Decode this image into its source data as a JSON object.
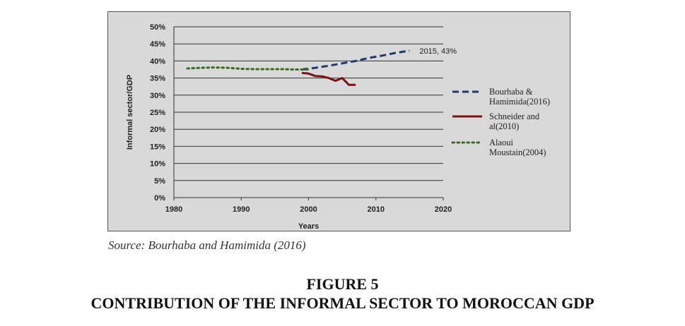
{
  "chart_data": {
    "type": "line",
    "xlabel": "Years",
    "ylabel": "Informal sector/GDP",
    "xlim": [
      1980,
      2020
    ],
    "ylim": [
      0,
      50
    ],
    "x_ticks": [
      "1980",
      "1990",
      "2000",
      "2010",
      "2020"
    ],
    "y_ticks": [
      "0%",
      "5%",
      "10%",
      "15%",
      "20%",
      "25%",
      "30%",
      "35%",
      "40%",
      "45%",
      "50%"
    ],
    "grid": "horizontal",
    "legend_position": "right",
    "series": [
      {
        "name": "Bourhaba & Hamimida(2016)",
        "name_lines": [
          "Bourhaba &",
          "Hamimida(2016)"
        ],
        "style": "dashed",
        "color": "#1f3b6e",
        "x": [
          1999,
          2001,
          2003,
          2005,
          2007,
          2009,
          2011,
          2013,
          2015
        ],
        "y": [
          37.5,
          38.0,
          38.6,
          39.3,
          40.0,
          40.9,
          41.6,
          42.4,
          43.0
        ]
      },
      {
        "name": "Schneider and al(2010)",
        "name_lines": [
          "Schneider and",
          "al(2010)"
        ],
        "style": "solid",
        "color": "#7b1212",
        "x": [
          1999,
          2000,
          2001,
          2002,
          2003,
          2004,
          2005,
          2006,
          2007
        ],
        "y": [
          36.5,
          36.3,
          35.6,
          35.5,
          35.0,
          34.2,
          35.0,
          33.0,
          33.0
        ]
      },
      {
        "name": "Alaoui Moustain(2004)",
        "name_lines": [
          "Alaoui",
          "Moustain(2004)"
        ],
        "style": "dotted",
        "color": "#3a6b1f",
        "x": [
          1982,
          1984,
          1986,
          1988,
          1990,
          1992,
          1994,
          1996,
          1998,
          2000
        ],
        "y": [
          37.8,
          38.0,
          38.1,
          38.0,
          37.7,
          37.6,
          37.6,
          37.6,
          37.5,
          37.5
        ]
      }
    ],
    "annotations": [
      {
        "text": "2015, 43%",
        "x": 2015,
        "y": 43
      }
    ]
  },
  "source": "Source: Bourhaba and Hamimida (2016)",
  "figure_number": "FIGURE 5",
  "figure_title": "CONTRIBUTION OF THE INFORMAL SECTOR TO MOROCCAN GDP"
}
